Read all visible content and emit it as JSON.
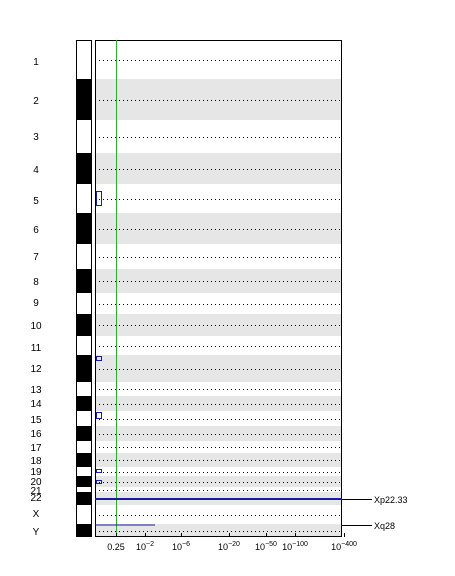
{
  "chart_data": {
    "type": "genome-plot",
    "chromosomes": [
      "1",
      "2",
      "3",
      "4",
      "5",
      "6",
      "7",
      "8",
      "9",
      "10",
      "11",
      "12",
      "13",
      "14",
      "15",
      "16",
      "17",
      "18",
      "19",
      "20",
      "21",
      "22",
      "X",
      "Y"
    ],
    "x_tick_labels": [
      {
        "base": "0.25",
        "exp": ""
      },
      {
        "base": "10",
        "exp": "−2"
      },
      {
        "base": "10",
        "exp": "−6"
      },
      {
        "base": "10",
        "exp": "−20"
      },
      {
        "base": "10",
        "exp": "−50"
      },
      {
        "base": "10",
        "exp": "−100"
      },
      {
        "base": "10",
        "exp": "−400"
      }
    ],
    "threshold_label": "0.25",
    "threshold_color": "#33aa33",
    "annotations": [
      "Xp22.33",
      "Xq28"
    ],
    "alternate_band_color": "#e6e6e6",
    "highlight_color": "#1a1aaa"
  }
}
